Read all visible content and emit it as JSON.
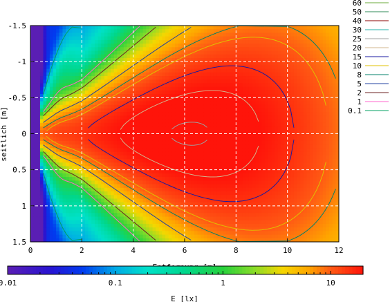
{
  "chart_data": {
    "type": "heatmap",
    "xlabel": "Entfernung [m]",
    "ylabel": "seitlich [m]",
    "xlim": [
      0,
      12
    ],
    "ylim": [
      1.5,
      -1.5
    ],
    "x_ticks": [
      "0",
      "2",
      "4",
      "6",
      "8",
      "10",
      "12"
    ],
    "y_ticks": [
      "-1.5",
      "-1",
      "-0.5",
      "0",
      "0.5",
      "1",
      "1.5"
    ],
    "grid": true,
    "legend_position": "right",
    "colorbar": {
      "label": "E [lx]",
      "scale": "log",
      "range": [
        0.01,
        20
      ],
      "ticks": [
        "0.01",
        "0.1",
        "1",
        "10"
      ]
    },
    "contour_legend": [
      {
        "label": "60",
        "color": "#6aaa3a"
      },
      {
        "label": "50",
        "color": "#2e8b57"
      },
      {
        "label": "40",
        "color": "#8b0000"
      },
      {
        "label": "30",
        "color": "#20b2aa"
      },
      {
        "label": "25",
        "color": "#a0a0a0"
      },
      {
        "label": "20",
        "color": "#d2b48c"
      },
      {
        "label": "15",
        "color": "#1a1aa0"
      },
      {
        "label": "10",
        "color": "#e0c000"
      },
      {
        "label": "8",
        "color": "#00806a"
      },
      {
        "label": "5",
        "color": "#2040a0"
      },
      {
        "label": "2",
        "color": "#6b2020"
      },
      {
        "label": "1",
        "color": "#ff66cc"
      },
      {
        "label": "0.1",
        "color": "#00a060"
      }
    ]
  }
}
